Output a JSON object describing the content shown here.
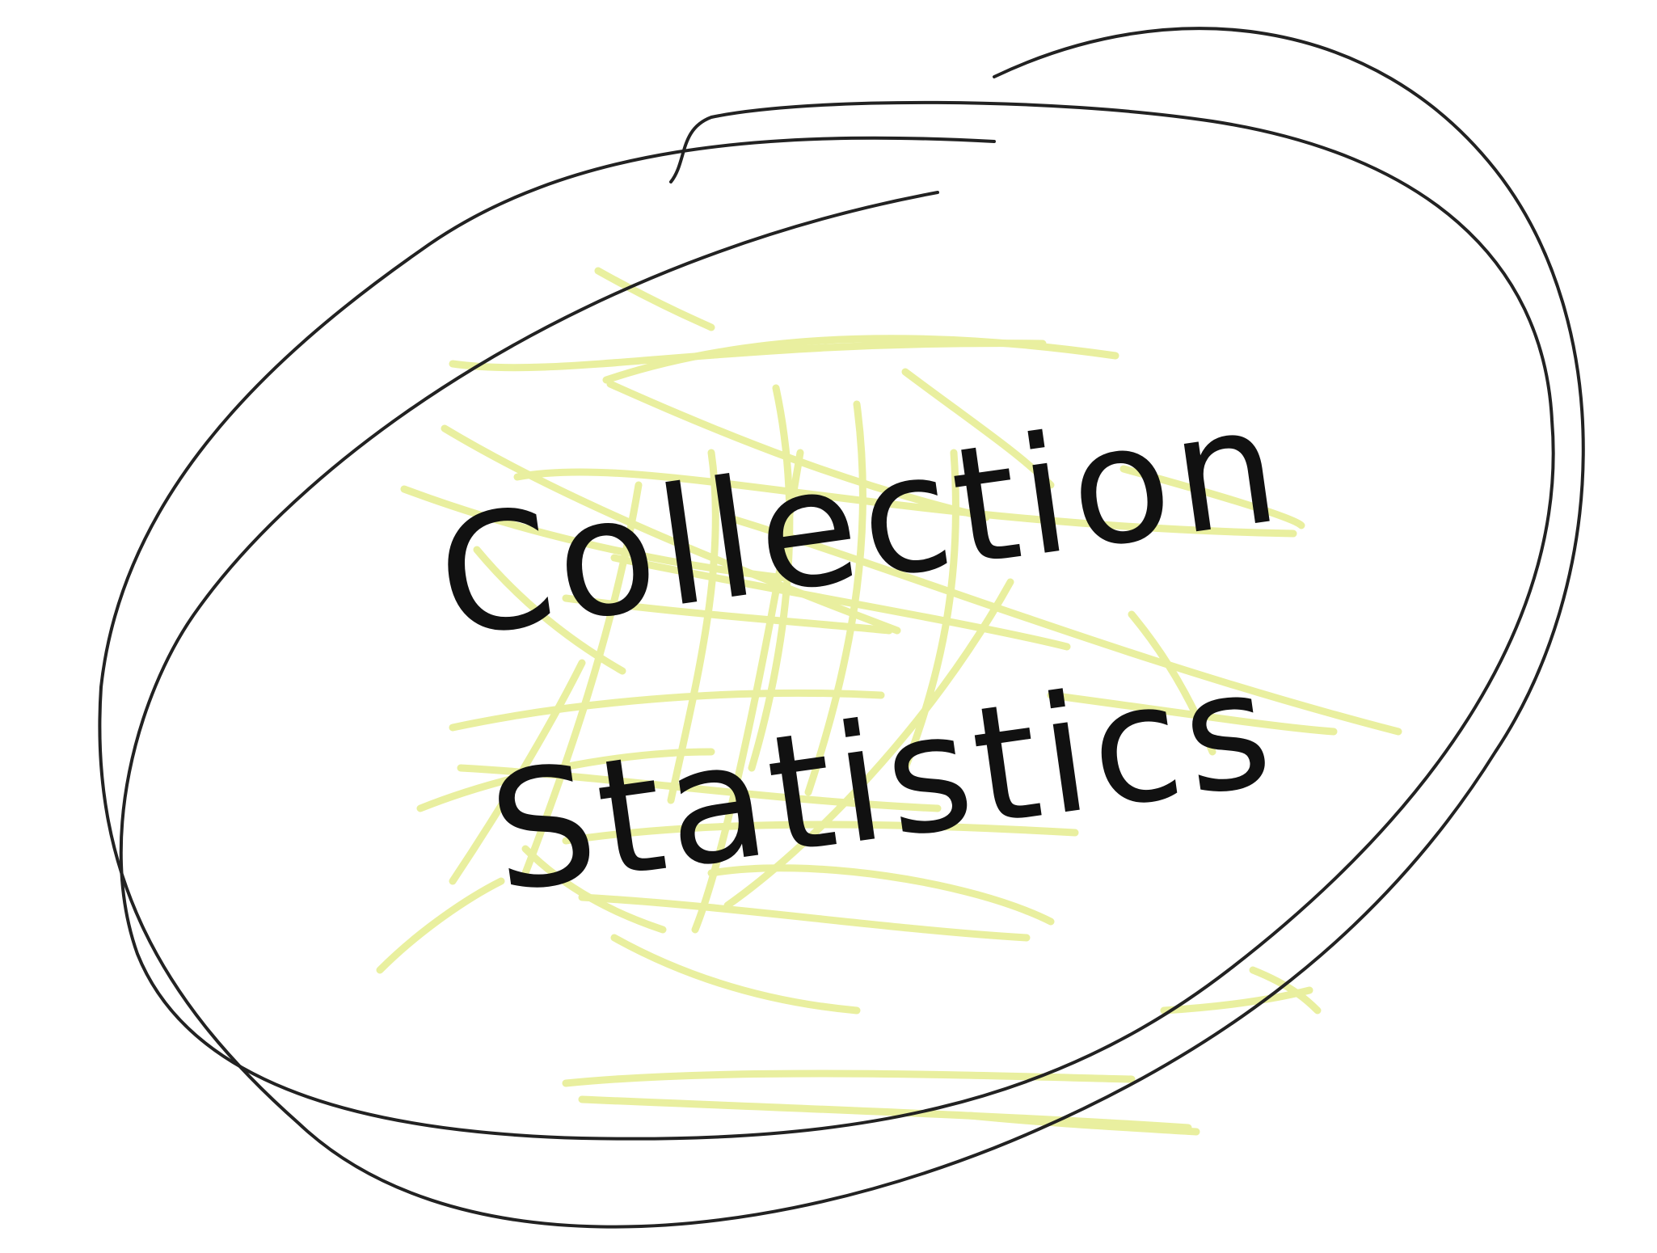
{
  "title": {
    "line1": "Collection",
    "line2": "Statistics"
  },
  "colors": {
    "scribble": "#e8ef9a",
    "outline": "#222222",
    "text": "#111111",
    "background": "#ffffff"
  }
}
